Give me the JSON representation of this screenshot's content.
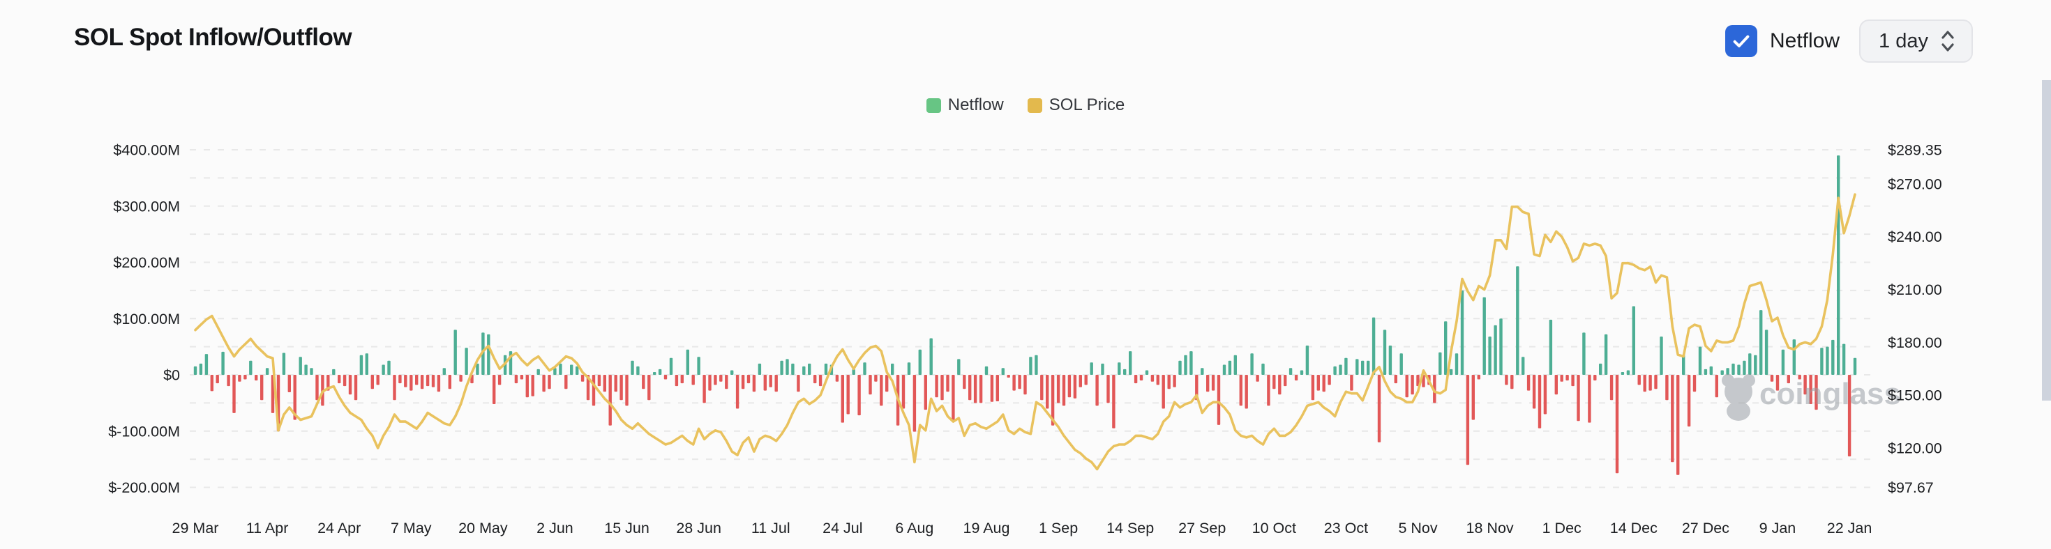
{
  "header": {
    "title": "SOL Spot Inflow/Outflow",
    "netflow_toggle_label": "Netflow",
    "netflow_toggle_checked": true,
    "interval_value": "1 day"
  },
  "legend": [
    {
      "label": "Netflow",
      "color": "#67c584"
    },
    {
      "label": "SOL Price",
      "color": "#e3b94d"
    }
  ],
  "watermark": "coinglass",
  "chart_data": {
    "type": "bar+line",
    "title": "SOL Spot Inflow/Outflow",
    "start_date": "29 Mar",
    "end_date": "22 Jan",
    "x_tick_labels": [
      "29 Mar",
      "11 Apr",
      "24 Apr",
      "7 May",
      "20 May",
      "2 Jun",
      "15 Jun",
      "28 Jun",
      "11 Jul",
      "24 Jul",
      "6 Aug",
      "19 Aug",
      "1 Sep",
      "14 Sep",
      "27 Sep",
      "10 Oct",
      "23 Oct",
      "5 Nov",
      "18 Nov",
      "1 Dec",
      "14 Dec",
      "27 Dec",
      "9 Jan",
      "22 Jan"
    ],
    "x_tick_day_interval": 13,
    "left_axis": {
      "title": "Netflow (USD)",
      "labels": [
        "$400.00M",
        "$300.00M",
        "$200.00M",
        "$100.00M",
        "$0",
        "$-100.00M",
        "$-200.00M"
      ],
      "min": -200,
      "max": 400,
      "unit": "USD millions"
    },
    "right_axis": {
      "title": "SOL Price (USD)",
      "labels": [
        "$289.35",
        "$270.00",
        "$240.00",
        "$210.00",
        "$180.00",
        "$150.00",
        "$120.00",
        "$97.67"
      ],
      "values": [
        289.35,
        270,
        240,
        210,
        180,
        150,
        120,
        97.67
      ],
      "min": 97.67,
      "max": 289.35
    },
    "grid": {
      "horizontal_dashed": true,
      "step_millions": 50
    },
    "series": [
      {
        "name": "Netflow",
        "type": "bar",
        "unit": "USD millions",
        "color_positive": "#4dae94",
        "color_negative": "#e25757",
        "values": [
          15,
          20,
          37,
          -29,
          -15,
          41,
          -20,
          -68,
          -12,
          -8,
          25,
          -10,
          -45,
          12,
          -68,
          -100,
          39,
          -31,
          -80,
          32,
          18,
          12,
          -45,
          -55,
          -28,
          10,
          -15,
          -20,
          -35,
          -45,
          35,
          38,
          -25,
          -18,
          18,
          25,
          -45,
          -15,
          -22,
          -28,
          -18,
          -25,
          -20,
          -22,
          -30,
          12,
          -25,
          80,
          -12,
          48,
          -15,
          20,
          75,
          72,
          -52,
          -18,
          35,
          42,
          -15,
          -8,
          -40,
          -38,
          10,
          -30,
          -25,
          12,
          20,
          -25,
          18,
          15,
          -12,
          -45,
          -55,
          -20,
          -30,
          -90,
          -30,
          -45,
          -55,
          25,
          15,
          -25,
          -45,
          5,
          10,
          -8,
          30,
          -20,
          -15,
          45,
          -18,
          32,
          -50,
          -28,
          -18,
          -12,
          -25,
          8,
          -60,
          -25,
          -15,
          -30,
          20,
          -28,
          -22,
          -30,
          25,
          28,
          20,
          -30,
          15,
          20,
          -15,
          -20,
          20,
          18,
          -12,
          -85,
          -70,
          10,
          -72,
          22,
          -35,
          -12,
          -55,
          -30,
          20,
          -90,
          -60,
          22,
          -101,
          45,
          -62,
          65,
          -40,
          -45,
          -30,
          -80,
          28,
          -25,
          -45,
          -50,
          -50,
          15,
          -48,
          -47,
          12,
          -5,
          -28,
          -25,
          -35,
          32,
          35,
          -45,
          -60,
          -90,
          -50,
          -55,
          -40,
          -42,
          -22,
          -18,
          22,
          -55,
          20,
          -50,
          -95,
          22,
          10,
          42,
          -15,
          -10,
          8,
          -12,
          -18,
          -60,
          -25,
          -22,
          25,
          35,
          42,
          -45,
          12,
          -30,
          -28,
          -89,
          18,
          25,
          35,
          -55,
          -60,
          38,
          -12,
          20,
          -55,
          -25,
          -35,
          -20,
          12,
          -10,
          8,
          52,
          -45,
          -28,
          -30,
          -18,
          15,
          18,
          30,
          -28,
          28,
          25,
          25,
          102,
          -120,
          80,
          52,
          -15,
          38,
          -40,
          -35,
          -20,
          -22,
          -18,
          -50,
          40,
          95,
          10,
          38,
          150,
          -160,
          -80,
          -8,
          138,
          68,
          88,
          100,
          -18,
          -25,
          193,
          32,
          -28,
          -60,
          -95,
          -70,
          98,
          -35,
          -12,
          -10,
          -20,
          -82,
          75,
          -85,
          -10,
          20,
          72,
          -45,
          -175,
          5,
          8,
          122,
          -18,
          -30,
          -28,
          -25,
          68,
          -45,
          -155,
          -178,
          35,
          -92,
          -30,
          50,
          10,
          15,
          -40,
          8,
          12,
          20,
          18,
          25,
          38,
          35,
          115,
          80,
          -12,
          -28,
          45,
          -15,
          63,
          -8,
          -35,
          -52,
          -62,
          48,
          50,
          62,
          390,
          55,
          -145,
          30
        ]
      },
      {
        "name": "SOL Price",
        "type": "line",
        "unit": "USD",
        "color": "#e9c25e",
        "values": [
          187,
          190,
          193,
          195,
          189,
          183,
          177,
          172,
          176,
          179,
          182,
          178,
          175,
          172,
          171,
          130,
          139,
          143,
          139,
          136,
          137,
          138,
          145,
          152,
          154,
          155,
          149,
          144,
          140,
          138,
          136,
          131,
          127,
          120,
          127,
          132,
          139,
          135,
          135,
          133,
          131,
          135,
          140,
          138,
          136,
          134,
          133,
          138,
          145,
          155,
          163,
          170,
          175,
          178,
          171,
          165,
          168,
          172,
          174,
          170,
          167,
          170,
          172,
          168,
          164,
          166,
          169,
          172,
          171,
          168,
          163,
          160,
          156,
          152,
          148,
          145,
          141,
          136,
          133,
          131,
          134,
          131,
          128,
          126,
          124,
          122,
          123,
          125,
          127,
          124,
          122,
          131,
          125,
          128,
          130,
          129,
          124,
          118,
          116,
          123,
          126,
          118,
          125,
          127,
          126,
          124,
          128,
          133,
          140,
          146,
          148,
          145,
          147,
          150,
          158,
          166,
          172,
          176,
          170,
          165,
          170,
          174,
          177,
          178,
          175,
          163,
          158,
          148,
          140,
          133,
          112,
          133,
          130,
          148,
          141,
          144,
          138,
          135,
          137,
          127,
          133,
          134,
          132,
          131,
          133,
          135,
          139,
          130,
          128,
          131,
          129,
          128,
          146,
          144,
          140,
          136,
          132,
          127,
          123,
          119,
          117,
          114,
          112,
          108,
          113,
          118,
          121,
          122,
          122,
          124,
          127,
          127,
          126,
          125,
          128,
          135,
          138,
          146,
          143,
          145,
          146,
          150,
          140,
          144,
          146,
          146,
          143,
          139,
          130,
          127,
          126,
          127,
          124,
          122,
          128,
          131,
          127,
          127,
          129,
          133,
          138,
          144,
          145,
          146,
          143,
          141,
          138,
          146,
          152,
          151,
          151,
          147,
          155,
          163,
          166,
          158,
          152,
          149,
          148,
          146,
          146,
          152,
          164,
          158,
          152,
          151,
          153,
          175,
          192,
          216,
          209,
          204,
          212,
          210,
          218,
          238,
          238,
          233,
          257,
          257,
          254,
          253,
          230,
          229,
          241,
          237,
          243,
          240,
          234,
          226,
          228,
          236,
          235,
          236,
          235,
          229,
          205,
          208,
          225,
          225,
          224,
          222,
          221,
          223,
          214,
          218,
          217,
          189,
          173,
          172,
          188,
          190,
          189,
          178,
          175,
          181,
          180,
          180,
          181,
          189,
          202,
          212,
          213,
          214,
          204,
          192,
          194,
          184,
          177,
          176,
          179,
          180,
          179,
          182,
          189,
          204,
          230,
          262,
          242,
          252,
          264
        ]
      }
    ]
  }
}
